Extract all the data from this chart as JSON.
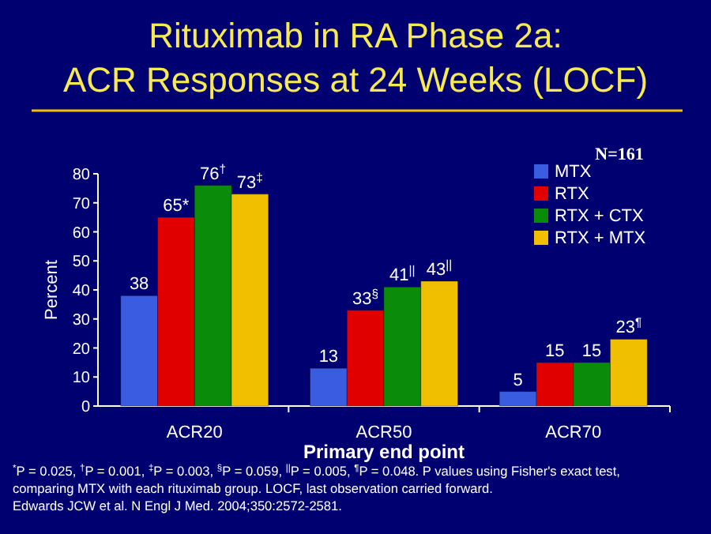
{
  "chart_data": {
    "type": "bar",
    "title": "Rituximab in RA Phase 2a:\nACR Responses at 24 Weeks (LOCF)",
    "xlabel": "Primary end point",
    "ylabel": "Percent",
    "categories": [
      "ACR20",
      "ACR50",
      "ACR70"
    ],
    "series": [
      {
        "name": "MTX",
        "color": "#3a5ce0",
        "values": [
          38,
          13,
          5
        ],
        "value_labels": [
          "38",
          "13",
          "5"
        ]
      },
      {
        "name": "RTX",
        "color": "#e00000",
        "values": [
          65,
          33,
          15
        ],
        "value_labels": [
          "65*",
          "33$^{§}$",
          "15"
        ]
      },
      {
        "name": "RTX + CTX",
        "color": "#0a8c0a",
        "values": [
          76,
          41,
          15
        ],
        "value_labels": [
          "76$^{†}$",
          "41$^{||}$",
          "15"
        ]
      },
      {
        "name": "RTX + MTX",
        "color": "#f0c000",
        "values": [
          73,
          43,
          23
        ],
        "value_labels": [
          "73$^{‡}$",
          "43$^{||}$",
          "23$^{¶}$"
        ]
      }
    ],
    "ylim": [
      0,
      80
    ],
    "yticks": [
      0,
      10,
      20,
      30,
      40,
      50,
      60,
      70,
      80
    ],
    "legend": "top right",
    "annotations": [
      "N=161",
      "$^{*}$P = 0.025, $^{†}$P = 0.001, $^{‡}$P = 0.003, $^{§}$P = 0.059, $^{||}$P = 0.005, $^{¶}$P = 0.048. P values using Fisher's exact test,",
      "comparing MTX with each rituximab group.  LOCF, last observation carried forward.",
      "Edwards JCW et al. N Engl J Med. 2004;350:2572-2581."
    ]
  }
}
